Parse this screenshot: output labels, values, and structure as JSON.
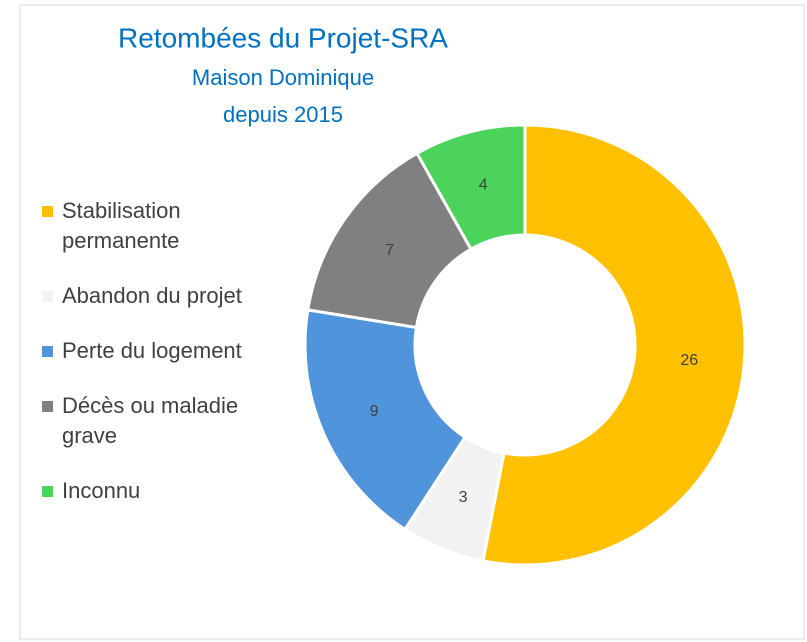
{
  "chart_data": {
    "type": "donut",
    "title": "Retombées du Projet-SRA",
    "subtitle": [
      "Maison Dominique",
      "depuis 2015"
    ],
    "categories": [
      "Stabilisation permanente",
      "Abandon du projet",
      "Perte du logement",
      "Décès ou maladie grave",
      "Inconnu"
    ],
    "values": [
      26,
      3,
      9,
      7,
      4
    ],
    "colors": [
      "#FFC000",
      "#F2F2F2",
      "#5094DC",
      "#808080",
      "#4CD35C"
    ],
    "legend": "left"
  }
}
